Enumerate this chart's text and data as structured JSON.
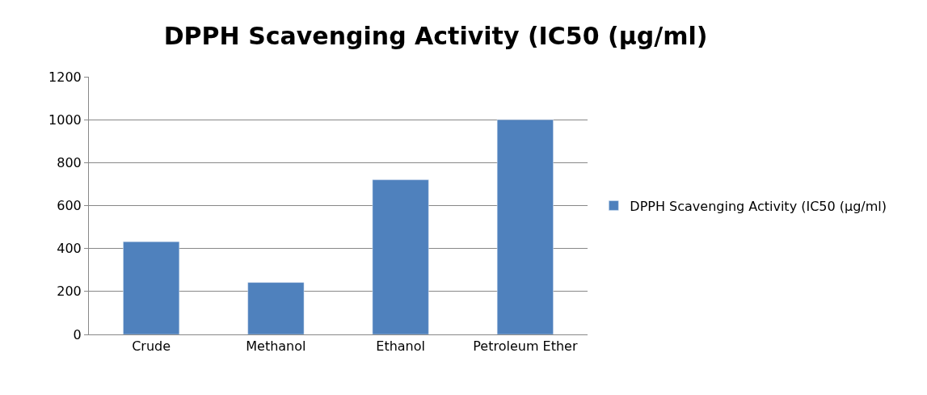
{
  "chart_data": {
    "type": "bar",
    "title": "DPPH Scavenging Activity (IC50 (µg/ml)",
    "categories": [
      "Crude",
      "Methanol",
      "Ethanol",
      "Petroleum Ether"
    ],
    "series": [
      {
        "name": "DPPH Scavenging Activity (IC50 (µg/ml)",
        "color": "#4f81bd",
        "values": [
          432,
          242,
          720,
          1000
        ]
      }
    ],
    "ylim": [
      0,
      1200
    ],
    "yticks": [
      0,
      200,
      400,
      600,
      800,
      1000,
      1200
    ],
    "grid": "y",
    "legend": "right"
  }
}
